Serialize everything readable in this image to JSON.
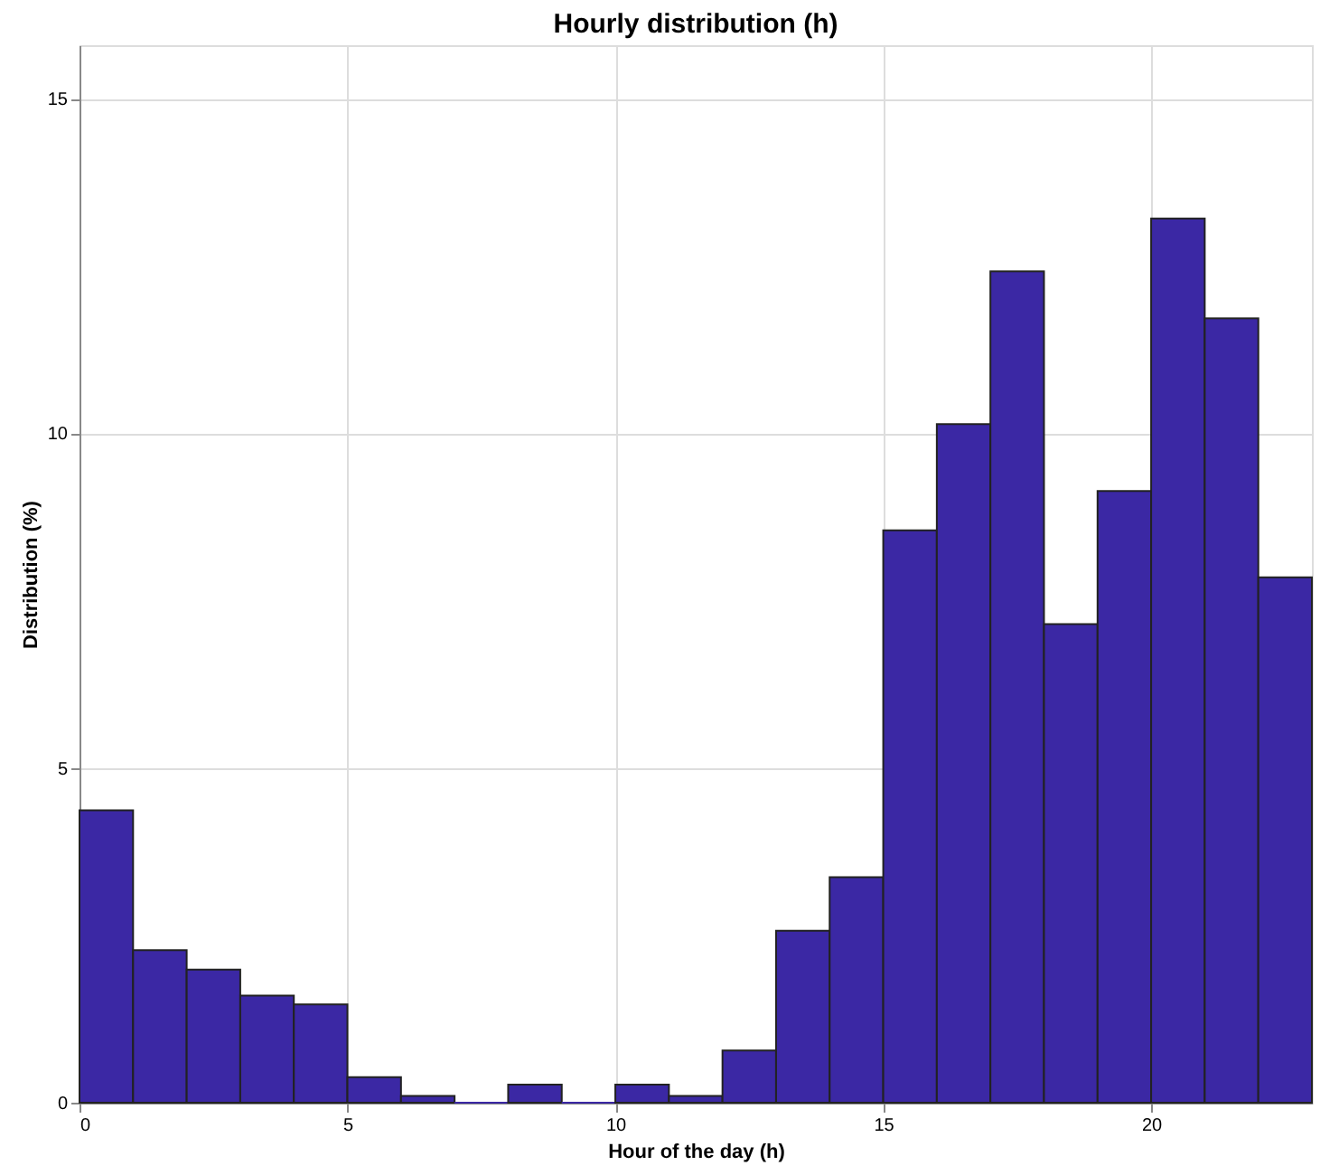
{
  "chart_data": {
    "type": "histogram",
    "title": "Hourly distribution (h)",
    "xlabel": "Hour of the day (h)",
    "ylabel": "Distribution (%)",
    "bins": [
      0,
      1,
      2,
      3,
      4,
      5,
      6,
      7,
      8,
      9,
      10,
      11,
      12,
      13,
      14,
      15,
      16,
      17,
      18,
      19,
      20,
      21,
      22,
      23
    ],
    "values": [
      4.37,
      2.28,
      1.99,
      1.6,
      1.47,
      0.38,
      0.1,
      0,
      0.27,
      0,
      0.27,
      0.1,
      0.78,
      2.57,
      3.37,
      8.55,
      10.14,
      12.42,
      7.15,
      9.14,
      13.21,
      11.72,
      7.85
    ],
    "color": "#3b28a4",
    "xlim": [
      0,
      23
    ],
    "xticks": [
      0,
      5,
      10,
      15,
      20
    ],
    "ylim": [
      0,
      15.8
    ],
    "yticks": [
      0,
      5,
      10,
      15
    ],
    "grid": true
  }
}
